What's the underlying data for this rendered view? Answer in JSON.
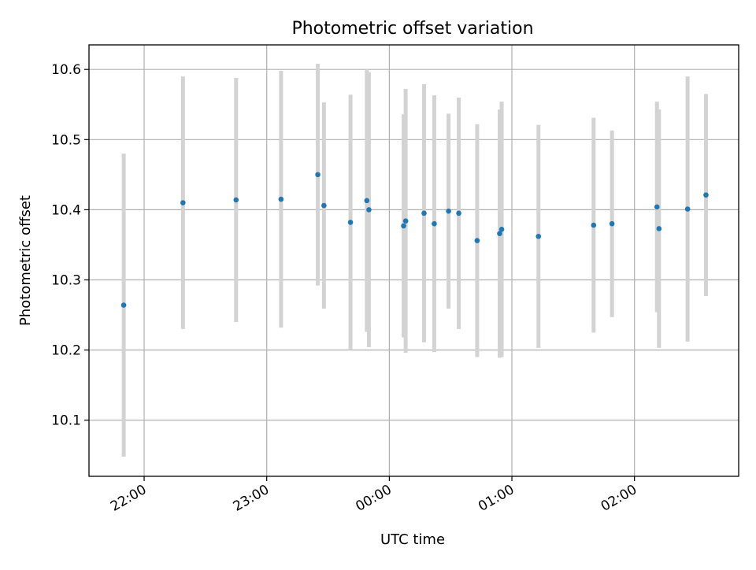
{
  "chart_data": {
    "type": "scatter",
    "title": "Photometric offset variation",
    "xlabel": "UTC time",
    "ylabel": "Photometric offset",
    "x_tick_labels": [
      "22:00",
      "23:00",
      "00:00",
      "01:00",
      "02:00"
    ],
    "x_ticks": [
      "22:00",
      "23:00",
      "00:00",
      "01:00",
      "02:00"
    ],
    "xlim": [
      "21:33",
      "02:51"
    ],
    "ylim": [
      10.02,
      10.635
    ],
    "y_ticks": [
      10.1,
      10.2,
      10.3,
      10.4,
      10.5,
      10.6
    ],
    "y_tick_labels": [
      "10.1",
      "10.2",
      "10.3",
      "10.4",
      "10.5",
      "10.6"
    ],
    "grid": true,
    "colors": {
      "points": "#1f77b4",
      "errorbars": "#d3d3d3",
      "grid": "#b0b0b0"
    },
    "points": [
      {
        "time": "21:50",
        "y": 10.264,
        "err": 0.216
      },
      {
        "time": "22:19",
        "y": 10.41,
        "err": 0.18
      },
      {
        "time": "22:45",
        "y": 10.414,
        "err": 0.174
      },
      {
        "time": "23:07",
        "y": 10.415,
        "err": 0.183
      },
      {
        "time": "23:25",
        "y": 10.45,
        "err": 0.158
      },
      {
        "time": "23:28",
        "y": 10.406,
        "err": 0.147
      },
      {
        "time": "23:41",
        "y": 10.382,
        "err": 0.182
      },
      {
        "time": "23:49",
        "y": 10.413,
        "err": 0.187
      },
      {
        "time": "23:50",
        "y": 10.4,
        "err": 0.196
      },
      {
        "time": "00:07",
        "y": 10.377,
        "err": 0.159
      },
      {
        "time": "00:08",
        "y": 10.384,
        "err": 0.188
      },
      {
        "time": "00:17",
        "y": 10.395,
        "err": 0.184
      },
      {
        "time": "00:22",
        "y": 10.38,
        "err": 0.183
      },
      {
        "time": "00:29",
        "y": 10.398,
        "err": 0.139
      },
      {
        "time": "00:34",
        "y": 10.395,
        "err": 0.165
      },
      {
        "time": "00:43",
        "y": 10.356,
        "err": 0.166
      },
      {
        "time": "00:54",
        "y": 10.366,
        "err": 0.177
      },
      {
        "time": "00:55",
        "y": 10.372,
        "err": 0.182
      },
      {
        "time": "01:13",
        "y": 10.362,
        "err": 0.159
      },
      {
        "time": "01:40",
        "y": 10.378,
        "err": 0.153
      },
      {
        "time": "01:49",
        "y": 10.38,
        "err": 0.133
      },
      {
        "time": "02:11",
        "y": 10.404,
        "err": 0.15
      },
      {
        "time": "02:12",
        "y": 10.373,
        "err": 0.17
      },
      {
        "time": "02:26",
        "y": 10.401,
        "err": 0.189
      },
      {
        "time": "02:35",
        "y": 10.421,
        "err": 0.144
      }
    ]
  }
}
